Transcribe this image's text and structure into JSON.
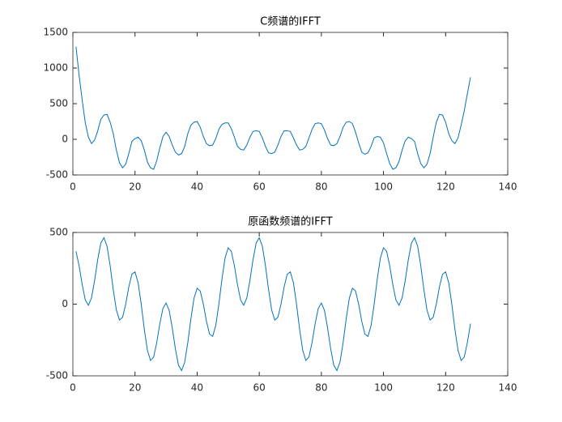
{
  "chart_data": [
    {
      "type": "line",
      "title": "C频谱的IFFT",
      "color": "#0072BD",
      "x": [
        1,
        2,
        3,
        4,
        5,
        6,
        7,
        8,
        9,
        10,
        11,
        12,
        13,
        14,
        15,
        16,
        17,
        18,
        19,
        20,
        21,
        22,
        23,
        24,
        25,
        26,
        27,
        28,
        29,
        30,
        31,
        32,
        33,
        34,
        35,
        36,
        37,
        38,
        39,
        40,
        41,
        42,
        43,
        44,
        45,
        46,
        47,
        48,
        49,
        50,
        51,
        52,
        53,
        54,
        55,
        56,
        57,
        58,
        59,
        60,
        61,
        62,
        63,
        64,
        65,
        66,
        67,
        68,
        69,
        70,
        71,
        72,
        73,
        74,
        75,
        76,
        77,
        78,
        79,
        80,
        81,
        82,
        83,
        84,
        85,
        86,
        87,
        88,
        89,
        90,
        91,
        92,
        93,
        94,
        95,
        96,
        97,
        98,
        99,
        100,
        101,
        102,
        103,
        104,
        105,
        106,
        107,
        108,
        109,
        110,
        111,
        112,
        113,
        114,
        115,
        116,
        117,
        118,
        119,
        120,
        121,
        122,
        123,
        124,
        125,
        126,
        127,
        128
      ],
      "values": [
        1300,
        900,
        550,
        230,
        30,
        -60,
        -10,
        120,
        280,
        340,
        350,
        240,
        80,
        -150,
        -330,
        -400,
        -350,
        -200,
        -30,
        10,
        30,
        -20,
        -150,
        -320,
        -400,
        -420,
        -300,
        -120,
        40,
        100,
        40,
        -80,
        -180,
        -220,
        -200,
        -100,
        80,
        200,
        240,
        250,
        170,
        40,
        -60,
        -90,
        -80,
        10,
        140,
        210,
        230,
        230,
        150,
        30,
        -100,
        -140,
        -150,
        -80,
        30,
        110,
        120,
        110,
        20,
        -100,
        -190,
        -200,
        -180,
        -80,
        40,
        120,
        120,
        110,
        20,
        -80,
        -150,
        -140,
        -100,
        20,
        140,
        220,
        230,
        220,
        130,
        10,
        -80,
        -90,
        -60,
        40,
        170,
        240,
        250,
        220,
        100,
        -50,
        -180,
        -210,
        -190,
        -100,
        20,
        40,
        30,
        -50,
        -200,
        -340,
        -420,
        -400,
        -310,
        -150,
        -20,
        30,
        10,
        -30,
        -200,
        -340,
        -400,
        -350,
        -200,
        30,
        240,
        350,
        340,
        240,
        80,
        -20,
        -60,
        20,
        200,
        400,
        640,
        870
      ],
      "xlim": [
        0,
        140
      ],
      "xticks": [
        0,
        20,
        40,
        60,
        80,
        100,
        120,
        140
      ],
      "ylim": [
        -500,
        1500
      ],
      "yticks": [
        -500,
        0,
        500,
        1000,
        1500
      ]
    },
    {
      "type": "line",
      "title": "原函数频谱的IFFT",
      "color": "#0072BD",
      "x": [
        1,
        2,
        3,
        4,
        5,
        6,
        7,
        8,
        9,
        10,
        11,
        12,
        13,
        14,
        15,
        16,
        17,
        18,
        19,
        20,
        21,
        22,
        23,
        24,
        25,
        26,
        27,
        28,
        29,
        30,
        31,
        32,
        33,
        34,
        35,
        36,
        37,
        38,
        39,
        40,
        41,
        42,
        43,
        44,
        45,
        46,
        47,
        48,
        49,
        50,
        51,
        52,
        53,
        54,
        55,
        56,
        57,
        58,
        59,
        60,
        61,
        62,
        63,
        64,
        65,
        66,
        67,
        68,
        69,
        70,
        71,
        72,
        73,
        74,
        75,
        76,
        77,
        78,
        79,
        80,
        81,
        82,
        83,
        84,
        85,
        86,
        87,
        88,
        89,
        90,
        91,
        92,
        93,
        94,
        95,
        96,
        97,
        98,
        99,
        100,
        101,
        102,
        103,
        104,
        105,
        106,
        107,
        108,
        109,
        110,
        111,
        112,
        113,
        114,
        115,
        116,
        117,
        118,
        119,
        120,
        121,
        122,
        123,
        124,
        125,
        126,
        127,
        128
      ],
      "values": [
        369,
        268,
        136,
        29,
        -8,
        44,
        166,
        312,
        426,
        463,
        404,
        268,
        101,
        -41,
        -111,
        -92,
        0,
        119,
        209,
        225,
        149,
        0,
        -176,
        -323,
        -393,
        -369,
        -268,
        -136,
        -29,
        8,
        -44,
        -166,
        -312,
        -426,
        -463,
        -404,
        -268,
        -101,
        41,
        111,
        92,
        0,
        -119,
        -209,
        -225,
        -149,
        0,
        176,
        323,
        393,
        369,
        268,
        136,
        29,
        -8,
        44,
        166,
        312,
        426,
        463,
        404,
        268,
        101,
        -41,
        -111,
        -92,
        0,
        119,
        209,
        225,
        149,
        0,
        -176,
        -323,
        -393,
        -369,
        -268,
        -136,
        -29,
        8,
        -44,
        -166,
        -312,
        -426,
        -463,
        -404,
        -268,
        -101,
        41,
        111,
        92,
        0,
        -119,
        -209,
        -225,
        -149,
        0,
        176,
        323,
        393,
        369,
        268,
        136,
        29,
        -8,
        44,
        166,
        312,
        426,
        463,
        404,
        268,
        101,
        -41,
        -111,
        -92,
        0,
        119,
        209,
        225,
        149,
        0,
        -176,
        -323,
        -393,
        -369,
        -268,
        -136
      ],
      "xlim": [
        0,
        140
      ],
      "xticks": [
        0,
        20,
        40,
        60,
        80,
        100,
        120,
        140
      ],
      "ylim": [
        -500,
        500
      ],
      "yticks": [
        -500,
        0,
        500
      ]
    }
  ]
}
